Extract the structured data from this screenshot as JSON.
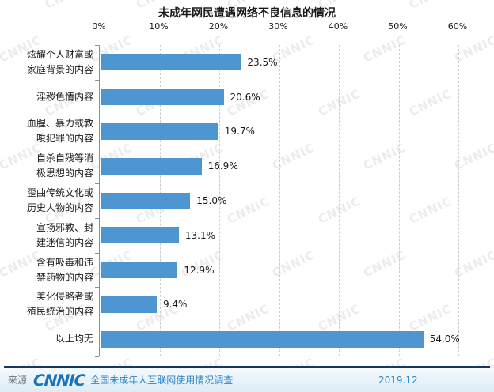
{
  "chart_data": {
    "type": "bar",
    "orientation": "horizontal",
    "title": "未成年网民遭遇网络不良信息的情况",
    "categories": [
      "炫耀个人财富或\n家庭背景的内容",
      "淫秽色情内容",
      "血腥、暴力或教\n唆犯罪的内容",
      "自杀自残等消\n极思想的内容",
      "歪曲传统文化或\n历史人物的内容",
      "宣扬邪教、封\n建迷信的内容",
      "含有吸毒和违\n禁药物的内容",
      "美化侵略者或\n殖民统治的内容",
      "以上均无"
    ],
    "values": [
      23.5,
      20.6,
      19.7,
      16.9,
      15.0,
      13.1,
      12.9,
      9.4,
      54.0
    ],
    "value_labels": [
      "23.5%",
      "20.6%",
      "19.7%",
      "16.9%",
      "15.0%",
      "13.1%",
      "12.9%",
      "9.4%",
      "54.0%"
    ],
    "x_ticks": [
      "0%",
      "10%",
      "20%",
      "30%",
      "40%",
      "50%",
      "60%"
    ],
    "xlim": [
      0,
      60
    ],
    "grid": "vertical-dashed",
    "legend": "none",
    "bar_color": "#4d96d1",
    "gridline_color": "#cbcbcb"
  },
  "watermark": {
    "text": "CNNIC",
    "color": "#ececec"
  },
  "footer": {
    "source_label": "来源",
    "logo_text": "CNNIC",
    "survey_name": "全国未成年人互联网使用情况调查",
    "date": "2019.12",
    "accent_color": "#2e86c8",
    "line_color": "#17375e"
  }
}
